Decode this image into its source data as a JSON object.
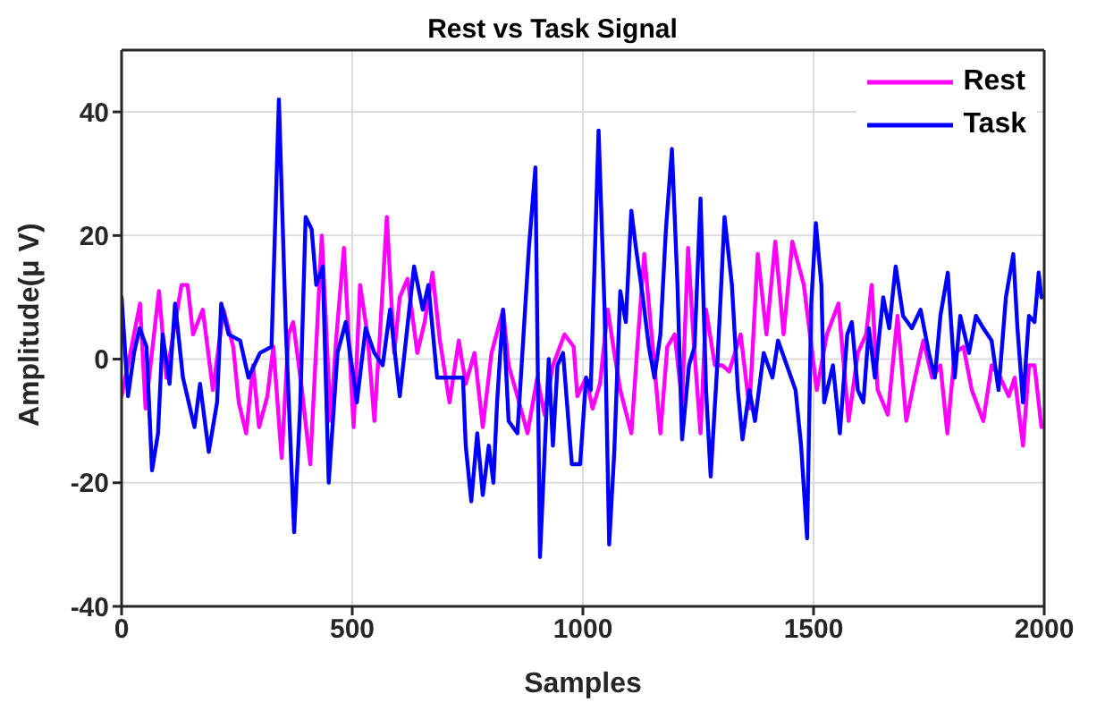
{
  "chart_data": {
    "type": "line",
    "title": "Rest vs Task Signal",
    "xlabel": "Samples",
    "ylabel": "Amplitude(μ V)",
    "xlim": [
      0,
      2000
    ],
    "xticks": [
      0,
      500,
      1000,
      1500,
      2000
    ],
    "ylim": [
      -40,
      50
    ],
    "yticks": [
      -40,
      -20,
      0,
      20,
      40
    ],
    "grid": true,
    "legend": "top right",
    "marker": "none",
    "line_style": "solid",
    "series": [
      {
        "name": "Rest",
        "color": "#ff00ff",
        "x": [
          0,
          19,
          40,
          52,
          81,
          97,
          112,
          130,
          143,
          155,
          176,
          198,
          221,
          242,
          254,
          270,
          285,
          298,
          316,
          329,
          347,
          362,
          372,
          391,
          409,
          434,
          453,
          466,
          482,
          503,
          517,
          533,
          548,
          560,
          575,
          591,
          603,
          620,
          641,
          657,
          674,
          690,
          711,
          731,
          746,
          765,
          783,
          802,
          827,
          839,
          858,
          880,
          901,
          917,
          935,
          960,
          980,
          988,
          1007,
          1021,
          1037,
          1054,
          1068,
          1081,
          1105,
          1120,
          1133,
          1149,
          1168,
          1183,
          1199,
          1215,
          1228,
          1240,
          1255,
          1267,
          1286,
          1302,
          1317,
          1342,
          1361,
          1379,
          1398,
          1417,
          1435,
          1454,
          1479,
          1507,
          1529,
          1554,
          1576,
          1596,
          1614,
          1626,
          1639,
          1661,
          1682,
          1701,
          1720,
          1738,
          1757,
          1775,
          1790,
          1806,
          1825,
          1843,
          1868,
          1886,
          1905,
          1923,
          1936,
          1954,
          1967,
          1979,
          1994
        ],
        "values": [
          -6,
          1,
          9,
          -8,
          11,
          -3,
          4,
          12,
          12,
          4,
          8,
          -5,
          8,
          2,
          -7,
          -12,
          -1,
          -11,
          -6,
          2,
          -16,
          4,
          6,
          -5,
          -17,
          20,
          -10,
          4,
          18,
          -11,
          12,
          4,
          -10,
          4,
          23,
          1,
          10,
          13,
          1,
          6,
          14,
          3,
          -7,
          3,
          -4,
          1,
          -11,
          1,
          8,
          -1,
          -6,
          -12,
          -3,
          -9,
          -1,
          4,
          2,
          -6,
          -3,
          -8,
          -4,
          8,
          1,
          -5,
          -12,
          4,
          17,
          4,
          -12,
          2,
          4,
          -7,
          18,
          3,
          -12,
          8,
          -1,
          -1,
          -2,
          4,
          -8,
          17,
          4,
          19,
          4,
          19,
          12,
          -5,
          4,
          9,
          -10,
          1,
          4,
          12,
          -5,
          -9,
          7,
          -10,
          -3,
          3,
          -3,
          -1,
          -12,
          1,
          2,
          -5,
          -10,
          -1,
          -3,
          -6,
          -3,
          -14,
          -1,
          -1,
          -11
        ]
      },
      {
        "name": "Task",
        "color": "#0000ff",
        "x": [
          0,
          14,
          27,
          39,
          54,
          66,
          79,
          89,
          104,
          116,
          133,
          158,
          170,
          189,
          207,
          216,
          232,
          257,
          275,
          300,
          325,
          341,
          356,
          374,
          387,
          399,
          412,
          422,
          436,
          449,
          468,
          486,
          510,
          529,
          548,
          566,
          582,
          603,
          634,
          653,
          665,
          684,
          702,
          721,
          740,
          746,
          758,
          771,
          783,
          796,
          806,
          814,
          827,
          839,
          858,
          883,
          897,
          907,
          926,
          935,
          945,
          957,
          976,
          994,
          1007,
          1017,
          1034,
          1047,
          1057,
          1068,
          1081,
          1093,
          1105,
          1115,
          1130,
          1143,
          1155,
          1168,
          1180,
          1193,
          1205,
          1215,
          1230,
          1242,
          1255,
          1267,
          1277,
          1292,
          1307,
          1323,
          1336,
          1346,
          1361,
          1373,
          1392,
          1411,
          1423,
          1442,
          1461,
          1473,
          1486,
          1495,
          1505,
          1517,
          1523,
          1542,
          1557,
          1573,
          1583,
          1596,
          1608,
          1620,
          1633,
          1651,
          1664,
          1678,
          1694,
          1713,
          1732,
          1750,
          1763,
          1775,
          1791,
          1806,
          1818,
          1837,
          1852,
          1868,
          1886,
          1901,
          1917,
          1933,
          1942,
          1954,
          1967,
          1979,
          1988,
          1994
        ],
        "values": [
          10,
          -6,
          1,
          5,
          2,
          -18,
          -12,
          4,
          -4,
          9,
          -3,
          -11,
          -4,
          -15,
          -7,
          9,
          4,
          3,
          -3,
          1,
          2,
          42,
          5,
          -28,
          -8,
          23,
          21,
          12,
          15,
          -20,
          1,
          6,
          -7,
          5,
          1,
          -1,
          8,
          -6,
          15,
          8,
          12,
          -3,
          -3,
          -3,
          -3,
          -14,
          -23,
          -12,
          -22,
          -14,
          -20,
          -7,
          8,
          -10,
          -12,
          18,
          31,
          -32,
          0,
          -14,
          -1,
          1,
          -17,
          -17,
          -3,
          -5,
          37,
          8,
          -30,
          -15,
          11,
          6,
          24,
          18,
          10,
          2,
          -3,
          4,
          21,
          34,
          12,
          -13,
          -1,
          2,
          26,
          -5,
          -19,
          0,
          23,
          12,
          -5,
          -13,
          -5,
          -10,
          1,
          -3,
          3,
          -1,
          -5,
          -14,
          -29,
          9,
          22,
          12,
          -7,
          -1,
          -12,
          4,
          6,
          -5,
          -7,
          5,
          -3,
          10,
          5,
          15,
          7,
          5,
          8,
          1,
          -3,
          7,
          14,
          -3,
          7,
          1,
          7,
          5,
          3,
          -5,
          10,
          17,
          5,
          -7,
          7,
          6,
          14,
          10
        ]
      }
    ]
  }
}
